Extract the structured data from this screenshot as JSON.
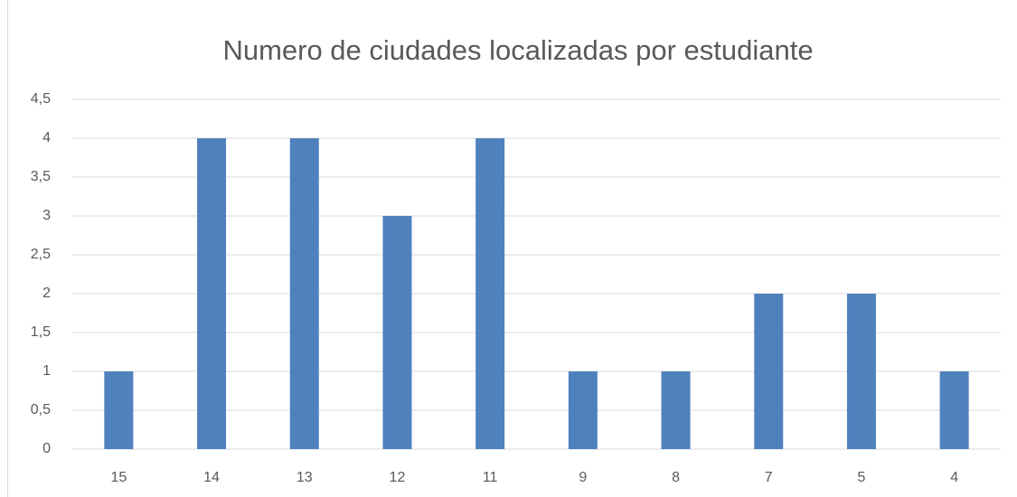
{
  "chart_data": {
    "type": "bar",
    "title": "Numero de ciudades localizadas por estudiante",
    "categories": [
      "15",
      "14",
      "13",
      "12",
      "11",
      "9",
      "8",
      "7",
      "5",
      "4"
    ],
    "values": [
      1,
      4,
      4,
      3,
      4,
      1,
      1,
      2,
      2,
      1
    ],
    "color": "#4f81bd",
    "ylim": [
      0,
      4.5
    ],
    "yticks": [
      0,
      {
        "value": 0.5,
        "label": "0,5"
      },
      1,
      {
        "value": 1.5,
        "label": "1,5"
      },
      2,
      {
        "value": 2.5,
        "label": "2,5"
      },
      3,
      {
        "value": 3.5,
        "label": "3,5"
      },
      4,
      {
        "value": 4.5,
        "label": "4,5"
      }
    ],
    "grid": true
  }
}
